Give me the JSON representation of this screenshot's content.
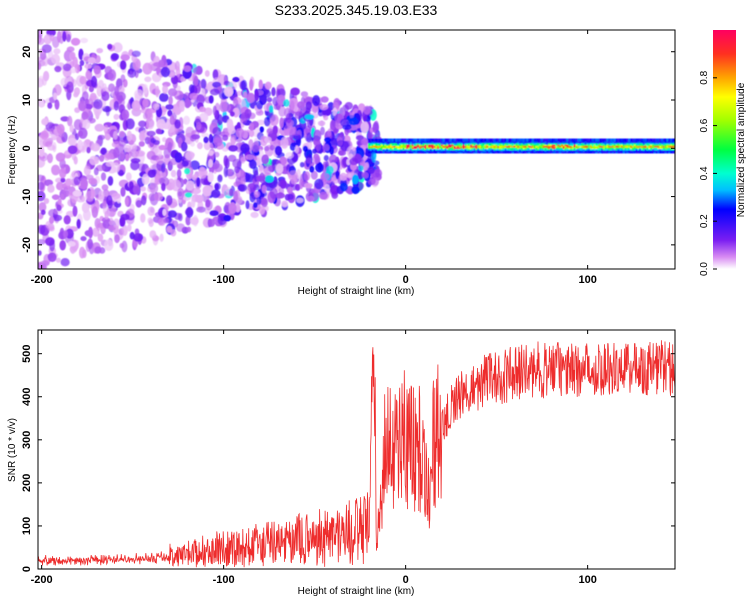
{
  "figure": {
    "title": "S233.2025.345.19.03.E33"
  },
  "colors": {
    "snr_line": "#ee2c2c",
    "frame": "#000000"
  },
  "chart_data": [
    {
      "type": "heatmap",
      "title": "S233.2025.345.19.03.E33",
      "xlabel": "Height of straight line (km)",
      "ylabel": "Frequency (Hz)",
      "xlim": [
        -202,
        148
      ],
      "ylim": [
        -25,
        24.5
      ],
      "xticks": [
        -200,
        -100,
        0,
        100
      ],
      "xtick_labels": [
        "-200",
        "-100",
        "0",
        "100"
      ],
      "yticks": [
        -20,
        -10,
        0,
        10,
        20
      ],
      "ytick_labels": [
        "-20",
        "-10",
        "0",
        "10",
        "20"
      ],
      "description_values": {
        "scatter_regime_km": [
          -202,
          -20
        ],
        "coherent_band_start_km": -20,
        "coherent_band_center_hz": 0.5,
        "coherent_band_halfwidth_hz": 1.2
      },
      "colorbar": {
        "label": "Normalized spectral amplitude",
        "range": [
          0.0,
          1.0
        ],
        "ticks": [
          0.0,
          0.2,
          0.4,
          0.6,
          0.8
        ],
        "tick_labels": [
          "0.0",
          "0.2",
          "0.4",
          "0.6",
          "0.8"
        ]
      }
    },
    {
      "type": "line",
      "xlabel": "Height of straight line (km)",
      "ylabel": "SNR (10 * v/v)",
      "xlim": [
        -202,
        148
      ],
      "ylim": [
        0,
        555
      ],
      "xticks": [
        -200,
        -100,
        0,
        100
      ],
      "xtick_labels": [
        "-200",
        "-100",
        "0",
        "100"
      ],
      "yticks": [
        0,
        100,
        200,
        300,
        400,
        500
      ],
      "ytick_labels": [
        "0",
        "100",
        "200",
        "300",
        "400",
        "500"
      ],
      "series": [
        {
          "name": "SNR",
          "x": [
            -200,
            -180,
            -160,
            -140,
            -120,
            -100,
            -80,
            -60,
            -40,
            -30,
            -20,
            -18,
            -17,
            -16,
            -14,
            -12,
            -10,
            -5,
            0,
            5,
            10,
            13,
            15,
            20,
            25,
            30,
            40,
            50,
            60,
            70,
            80,
            90,
            100,
            110,
            120,
            130,
            148
          ],
          "y": [
            20,
            20,
            22,
            25,
            35,
            48,
            55,
            65,
            80,
            85,
            95,
            420,
            380,
            60,
            150,
            250,
            290,
            300,
            310,
            280,
            270,
            160,
            290,
            330,
            380,
            400,
            430,
            445,
            455,
            460,
            465,
            460,
            465,
            470,
            465,
            470,
            470
          ]
        }
      ]
    }
  ]
}
